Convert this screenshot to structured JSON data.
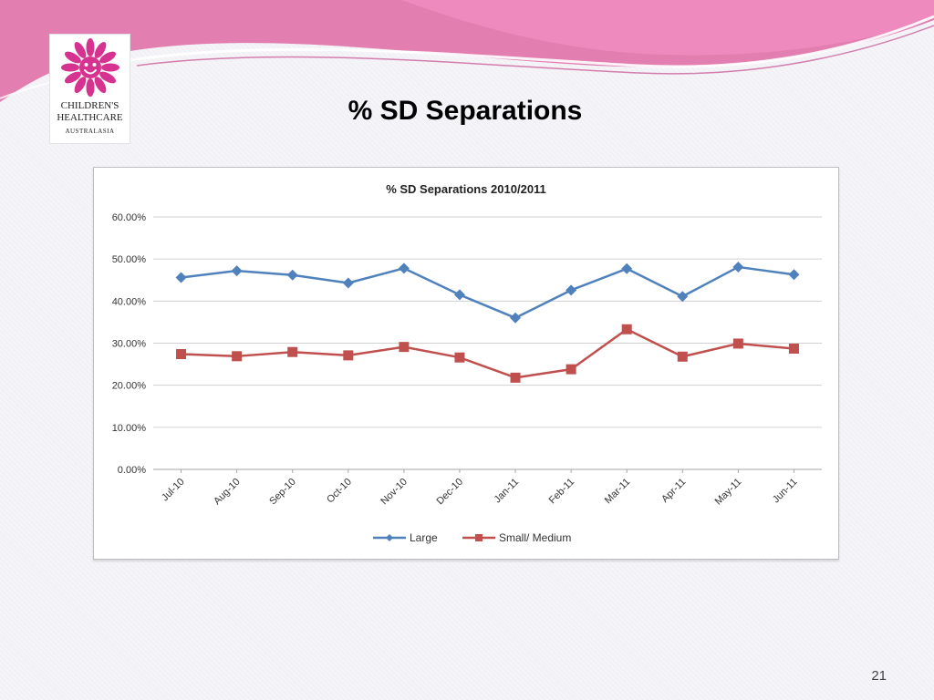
{
  "slide": {
    "title": "% SD Separations",
    "page_number": "21"
  },
  "logo": {
    "line1": "CHILDREN'S",
    "line2": "HEALTHCARE",
    "line3": "AUSTRALASIA"
  },
  "colors": {
    "accent_pink": "#d6328f",
    "banner_pink": "#e57fb0",
    "series_large": "#4f81bd",
    "series_small_medium": "#c0504d"
  },
  "chart_data": {
    "type": "line",
    "title": "% SD Separations 2010/2011",
    "categories": [
      "Jul-10",
      "Aug-10",
      "Sep-10",
      "Oct-10",
      "Nov-10",
      "Dec-10",
      "Jan-11",
      "Feb-11",
      "Mar-11",
      "Apr-11",
      "May-11",
      "Jun-11"
    ],
    "series": [
      {
        "name": "Large",
        "marker": "diamond",
        "color": "#4f81bd",
        "values": [
          45.6,
          47.2,
          46.2,
          44.3,
          47.8,
          41.5,
          36.0,
          42.6,
          47.7,
          41.1,
          48.1,
          46.3
        ]
      },
      {
        "name": "Small/ Medium",
        "marker": "square",
        "color": "#c0504d",
        "values": [
          27.4,
          26.9,
          27.9,
          27.1,
          29.1,
          26.6,
          21.8,
          23.8,
          33.3,
          26.8,
          29.9,
          28.7
        ]
      }
    ],
    "yticks": [
      "0.00%",
      "10.00%",
      "20.00%",
      "30.00%",
      "40.00%",
      "50.00%",
      "60.00%"
    ],
    "ylim": [
      0,
      60
    ],
    "xlabel": "",
    "ylabel": "",
    "grid": true,
    "legend": "bottom"
  }
}
